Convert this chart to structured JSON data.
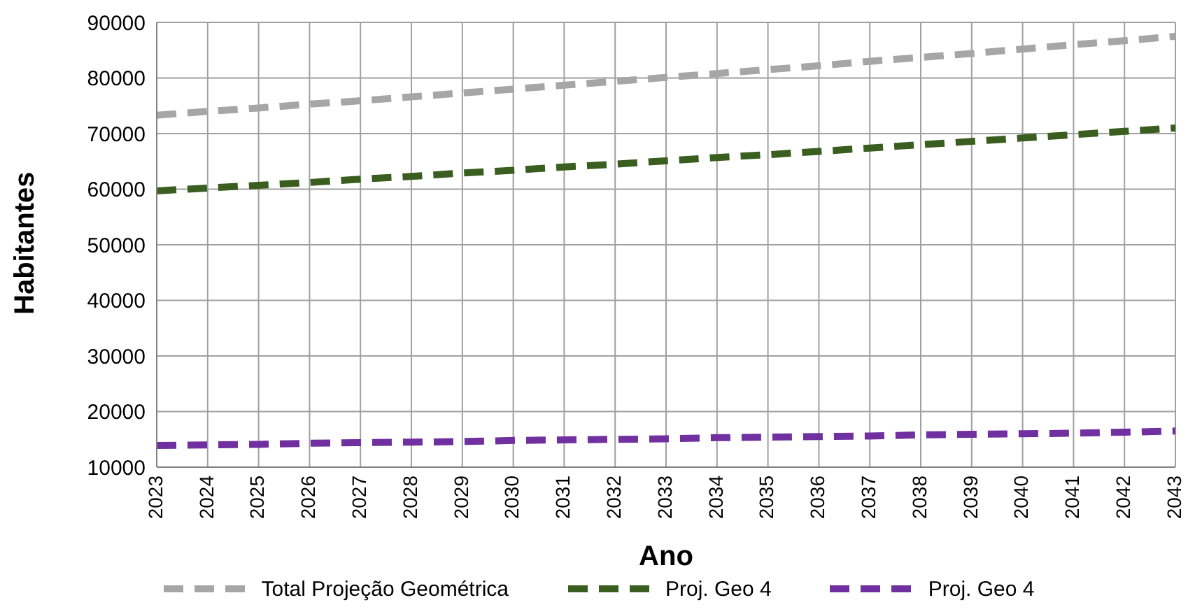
{
  "chart_data": {
    "type": "line",
    "xlabel": "Ano",
    "ylabel": "Habitantes",
    "x": [
      2023,
      2024,
      2025,
      2026,
      2027,
      2028,
      2029,
      2030,
      2031,
      2032,
      2033,
      2034,
      2035,
      2036,
      2037,
      2038,
      2039,
      2040,
      2041,
      2042,
      2043
    ],
    "series": [
      {
        "name": "Total Projeção Geométrica",
        "color": "#a6a6a6",
        "values": [
          73300,
          74000,
          74600,
          75300,
          75900,
          76600,
          77300,
          78000,
          78700,
          79400,
          80100,
          80800,
          81500,
          82200,
          83000,
          83700,
          84400,
          85200,
          86000,
          86700,
          87500
        ]
      },
      {
        "name": "Proj. Geo 4",
        "color": "#3a5e1f",
        "values": [
          59700,
          60200,
          60700,
          61200,
          61800,
          62300,
          62900,
          63400,
          64000,
          64500,
          65100,
          65700,
          66200,
          66800,
          67400,
          68000,
          68600,
          69200,
          69800,
          70400,
          71000
        ]
      },
      {
        "name": "Proj. Geo 4",
        "color": "#7030a0",
        "values": [
          13900,
          14000,
          14100,
          14300,
          14400,
          14500,
          14600,
          14800,
          14900,
          15000,
          15100,
          15300,
          15400,
          15500,
          15600,
          15800,
          15900,
          16000,
          16100,
          16300,
          16500
        ]
      }
    ],
    "xlim": [
      2023,
      2043
    ],
    "xticks": [
      2023,
      2024,
      2025,
      2026,
      2027,
      2028,
      2029,
      2030,
      2031,
      2032,
      2033,
      2034,
      2035,
      2036,
      2037,
      2038,
      2039,
      2040,
      2041,
      2042,
      2043
    ],
    "ylim": [
      10000,
      90000
    ],
    "yticks": [
      10000,
      20000,
      30000,
      40000,
      50000,
      60000,
      70000,
      80000,
      90000
    ],
    "grid": true,
    "legend": "bottom",
    "marker": "none",
    "line_style": "dashed"
  }
}
